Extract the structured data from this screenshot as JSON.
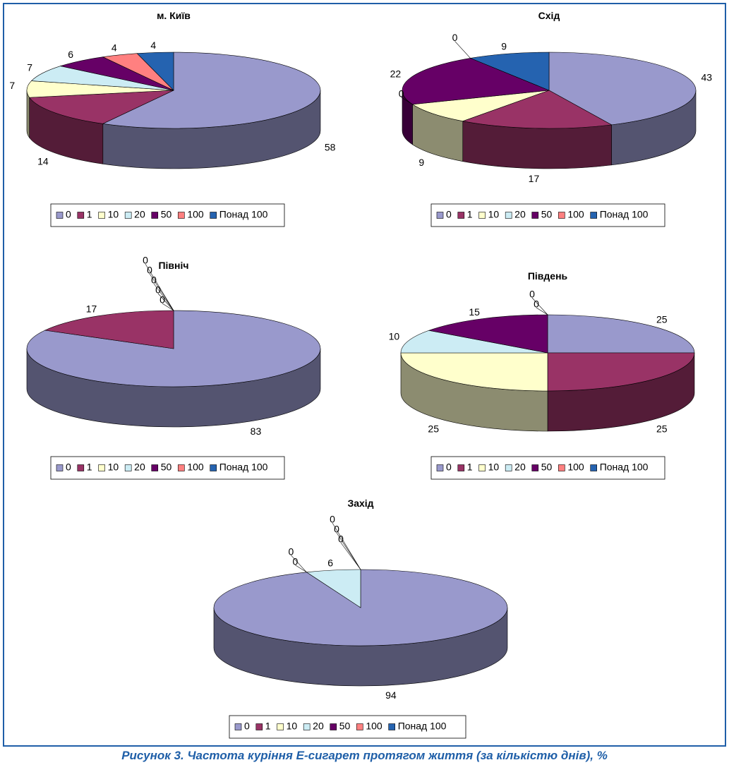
{
  "caption": "Рисунок 3. Частота куріння Е-сигарет протягом життя (за кількістю днів), %",
  "colors": {
    "0": "#9999cc",
    "1": "#993366",
    "10": "#ffffcc",
    "20": "#ccecf4",
    "50": "#660066",
    "100": "#ff8080",
    "over100": "#2563b0"
  },
  "chart_data": [
    {
      "type": "pie",
      "title": "м. Київ",
      "categories": [
        "0",
        "1",
        "10",
        "20",
        "50",
        "100",
        "Понад 100"
      ],
      "values": [
        58,
        14,
        7,
        7,
        6,
        4,
        4
      ],
      "legend": "bottom"
    },
    {
      "type": "pie",
      "title": "Схід",
      "categories": [
        "0",
        "1",
        "10",
        "20",
        "50",
        "100",
        "Понад 100"
      ],
      "values": [
        43,
        17,
        9,
        0,
        22,
        0,
        9
      ],
      "legend": "bottom"
    },
    {
      "type": "pie",
      "title": "Північ",
      "categories": [
        "0",
        "1",
        "10",
        "20",
        "50",
        "100",
        "Понад 100"
      ],
      "values": [
        83,
        17,
        0,
        0,
        0,
        0,
        0
      ],
      "legend": "bottom"
    },
    {
      "type": "pie",
      "title": "Південь",
      "categories": [
        "0",
        "1",
        "10",
        "20",
        "50",
        "100",
        "Понад 100"
      ],
      "values": [
        25,
        25,
        25,
        10,
        15,
        0,
        0
      ],
      "legend": "bottom"
    },
    {
      "type": "pie",
      "title": "Захід",
      "categories": [
        "0",
        "1",
        "10",
        "20",
        "50",
        "100",
        "Понад 100"
      ],
      "values": [
        94,
        0,
        0,
        6,
        0,
        0,
        0
      ],
      "legend": "bottom"
    }
  ]
}
